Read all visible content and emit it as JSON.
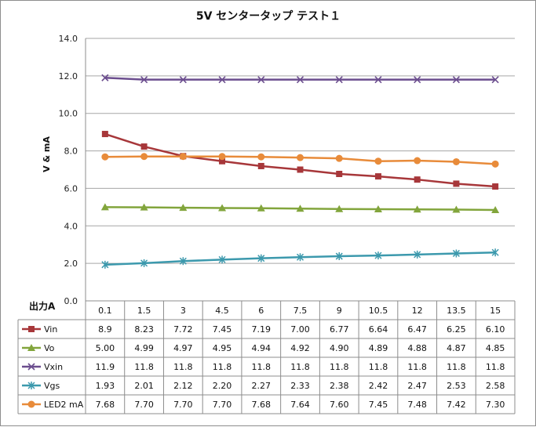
{
  "chart_data": {
    "type": "line",
    "title": "5V センタータップ テスト１",
    "xlabel": "出力A",
    "ylabel": "V & mA",
    "ylim": [
      0,
      14
    ],
    "yticks": [
      "0.0",
      "2.0",
      "4.0",
      "6.0",
      "8.0",
      "10.0",
      "12.0",
      "14.0"
    ],
    "grid": true,
    "categories": [
      "0.1",
      "1.5",
      "3",
      "4.5",
      "6",
      "7.5",
      "9",
      "10.5",
      "12",
      "13.5",
      "15"
    ],
    "series": [
      {
        "name": "Vin",
        "color": "#a7373a",
        "marker": "square",
        "values": [
          8.9,
          8.23,
          7.72,
          7.45,
          7.19,
          7.0,
          6.77,
          6.64,
          6.47,
          6.25,
          6.1
        ],
        "labels": [
          "8.9",
          "8.23",
          "7.72",
          "7.45",
          "7.19",
          "7.00",
          "6.77",
          "6.64",
          "6.47",
          "6.25",
          "6.10"
        ]
      },
      {
        "name": "Vo",
        "color": "#82a53c",
        "marker": "triangle",
        "values": [
          5.0,
          4.99,
          4.97,
          4.95,
          4.94,
          4.92,
          4.9,
          4.89,
          4.88,
          4.87,
          4.85
        ],
        "labels": [
          "5.00",
          "4.99",
          "4.97",
          "4.95",
          "4.94",
          "4.92",
          "4.90",
          "4.89",
          "4.88",
          "4.87",
          "4.85"
        ]
      },
      {
        "name": "Vxin",
        "color": "#6b4d8e",
        "marker": "x",
        "values": [
          11.9,
          11.8,
          11.8,
          11.8,
          11.8,
          11.8,
          11.8,
          11.8,
          11.8,
          11.8,
          11.8
        ],
        "labels": [
          "11.9",
          "11.8",
          "11.8",
          "11.8",
          "11.8",
          "11.8",
          "11.8",
          "11.8",
          "11.8",
          "11.8",
          "11.8"
        ]
      },
      {
        "name": "Vgs",
        "color": "#3c99ad",
        "marker": "star",
        "values": [
          1.93,
          2.01,
          2.12,
          2.2,
          2.27,
          2.33,
          2.38,
          2.42,
          2.47,
          2.53,
          2.58
        ],
        "labels": [
          "1.93",
          "2.01",
          "2.12",
          "2.20",
          "2.27",
          "2.33",
          "2.38",
          "2.42",
          "2.47",
          "2.53",
          "2.58"
        ]
      },
      {
        "name": "LED2 mA",
        "color": "#e88b3a",
        "marker": "circle",
        "values": [
          7.68,
          7.7,
          7.7,
          7.7,
          7.68,
          7.64,
          7.6,
          7.45,
          7.48,
          7.42,
          7.3
        ],
        "labels": [
          "7.68",
          "7.70",
          "7.70",
          "7.70",
          "7.68",
          "7.64",
          "7.60",
          "7.45",
          "7.48",
          "7.42",
          "7.30"
        ]
      }
    ]
  }
}
